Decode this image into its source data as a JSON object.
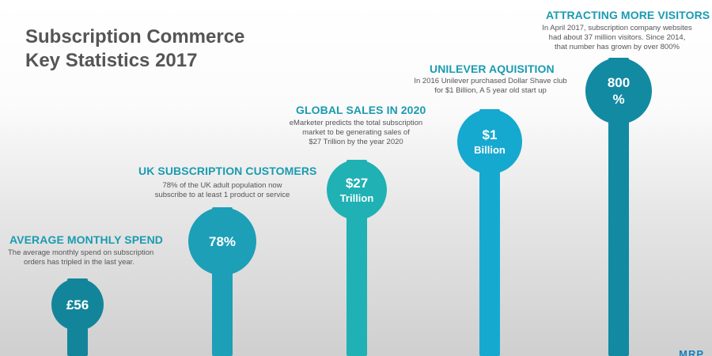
{
  "title": {
    "line1": "Subscription Commerce",
    "line2": "Key Statistics 2017"
  },
  "chart_data": {
    "type": "bar",
    "categories": [
      "AVERAGE MONTHLY SPEND",
      "UK SUBSCRIPTION CUSTOMERS",
      "GLOBAL SALES IN 2020",
      "UNILEVER AQUISITION",
      "ATTRACTING MORE VISITORS"
    ],
    "values": [
      "£56",
      "78%",
      "$27 Trillion",
      "$1 Billion",
      "800 %"
    ]
  },
  "stats": [
    {
      "heading": "AVERAGE MONTHLY SPEND",
      "desc": [
        "The average monthly spend on subscription",
        "orders has tripled in the last year."
      ],
      "value_line1": "£56",
      "value_line2": "",
      "color": "#13859a"
    },
    {
      "heading": "UK SUBSCRIPTION CUSTOMERS",
      "desc": [
        "78% of the UK adult population now",
        "subscribe to at least 1 product or service"
      ],
      "value_line1": "78%",
      "value_line2": "",
      "color": "#1d9fb8"
    },
    {
      "heading": "GLOBAL SALES IN 2020",
      "desc": [
        "eMarketer predicts the total subscription",
        "market to be generating sales of",
        "$27 Trillion by the year 2020"
      ],
      "value_line1": "$27",
      "value_line2": "Trillion",
      "color": "#1fb1b4"
    },
    {
      "heading": "UNILEVER AQUISITION",
      "desc": [
        "In 2016 Unilever purchased Dollar Shave club",
        "for $1 Billion, A 5 year old start up"
      ],
      "value_line1": "$1",
      "value_line2": "Billion",
      "color": "#16a9cf"
    },
    {
      "heading": "ATTRACTING MORE VISITORS",
      "desc": [
        "In April 2017, subscription company websites",
        "had about 37 million visitors. Since 2014,",
        "that number has grown by over 800%"
      ],
      "value_line1": "800",
      "value_line2": "%",
      "color": "#128aa2"
    }
  ],
  "logo": "MRP"
}
